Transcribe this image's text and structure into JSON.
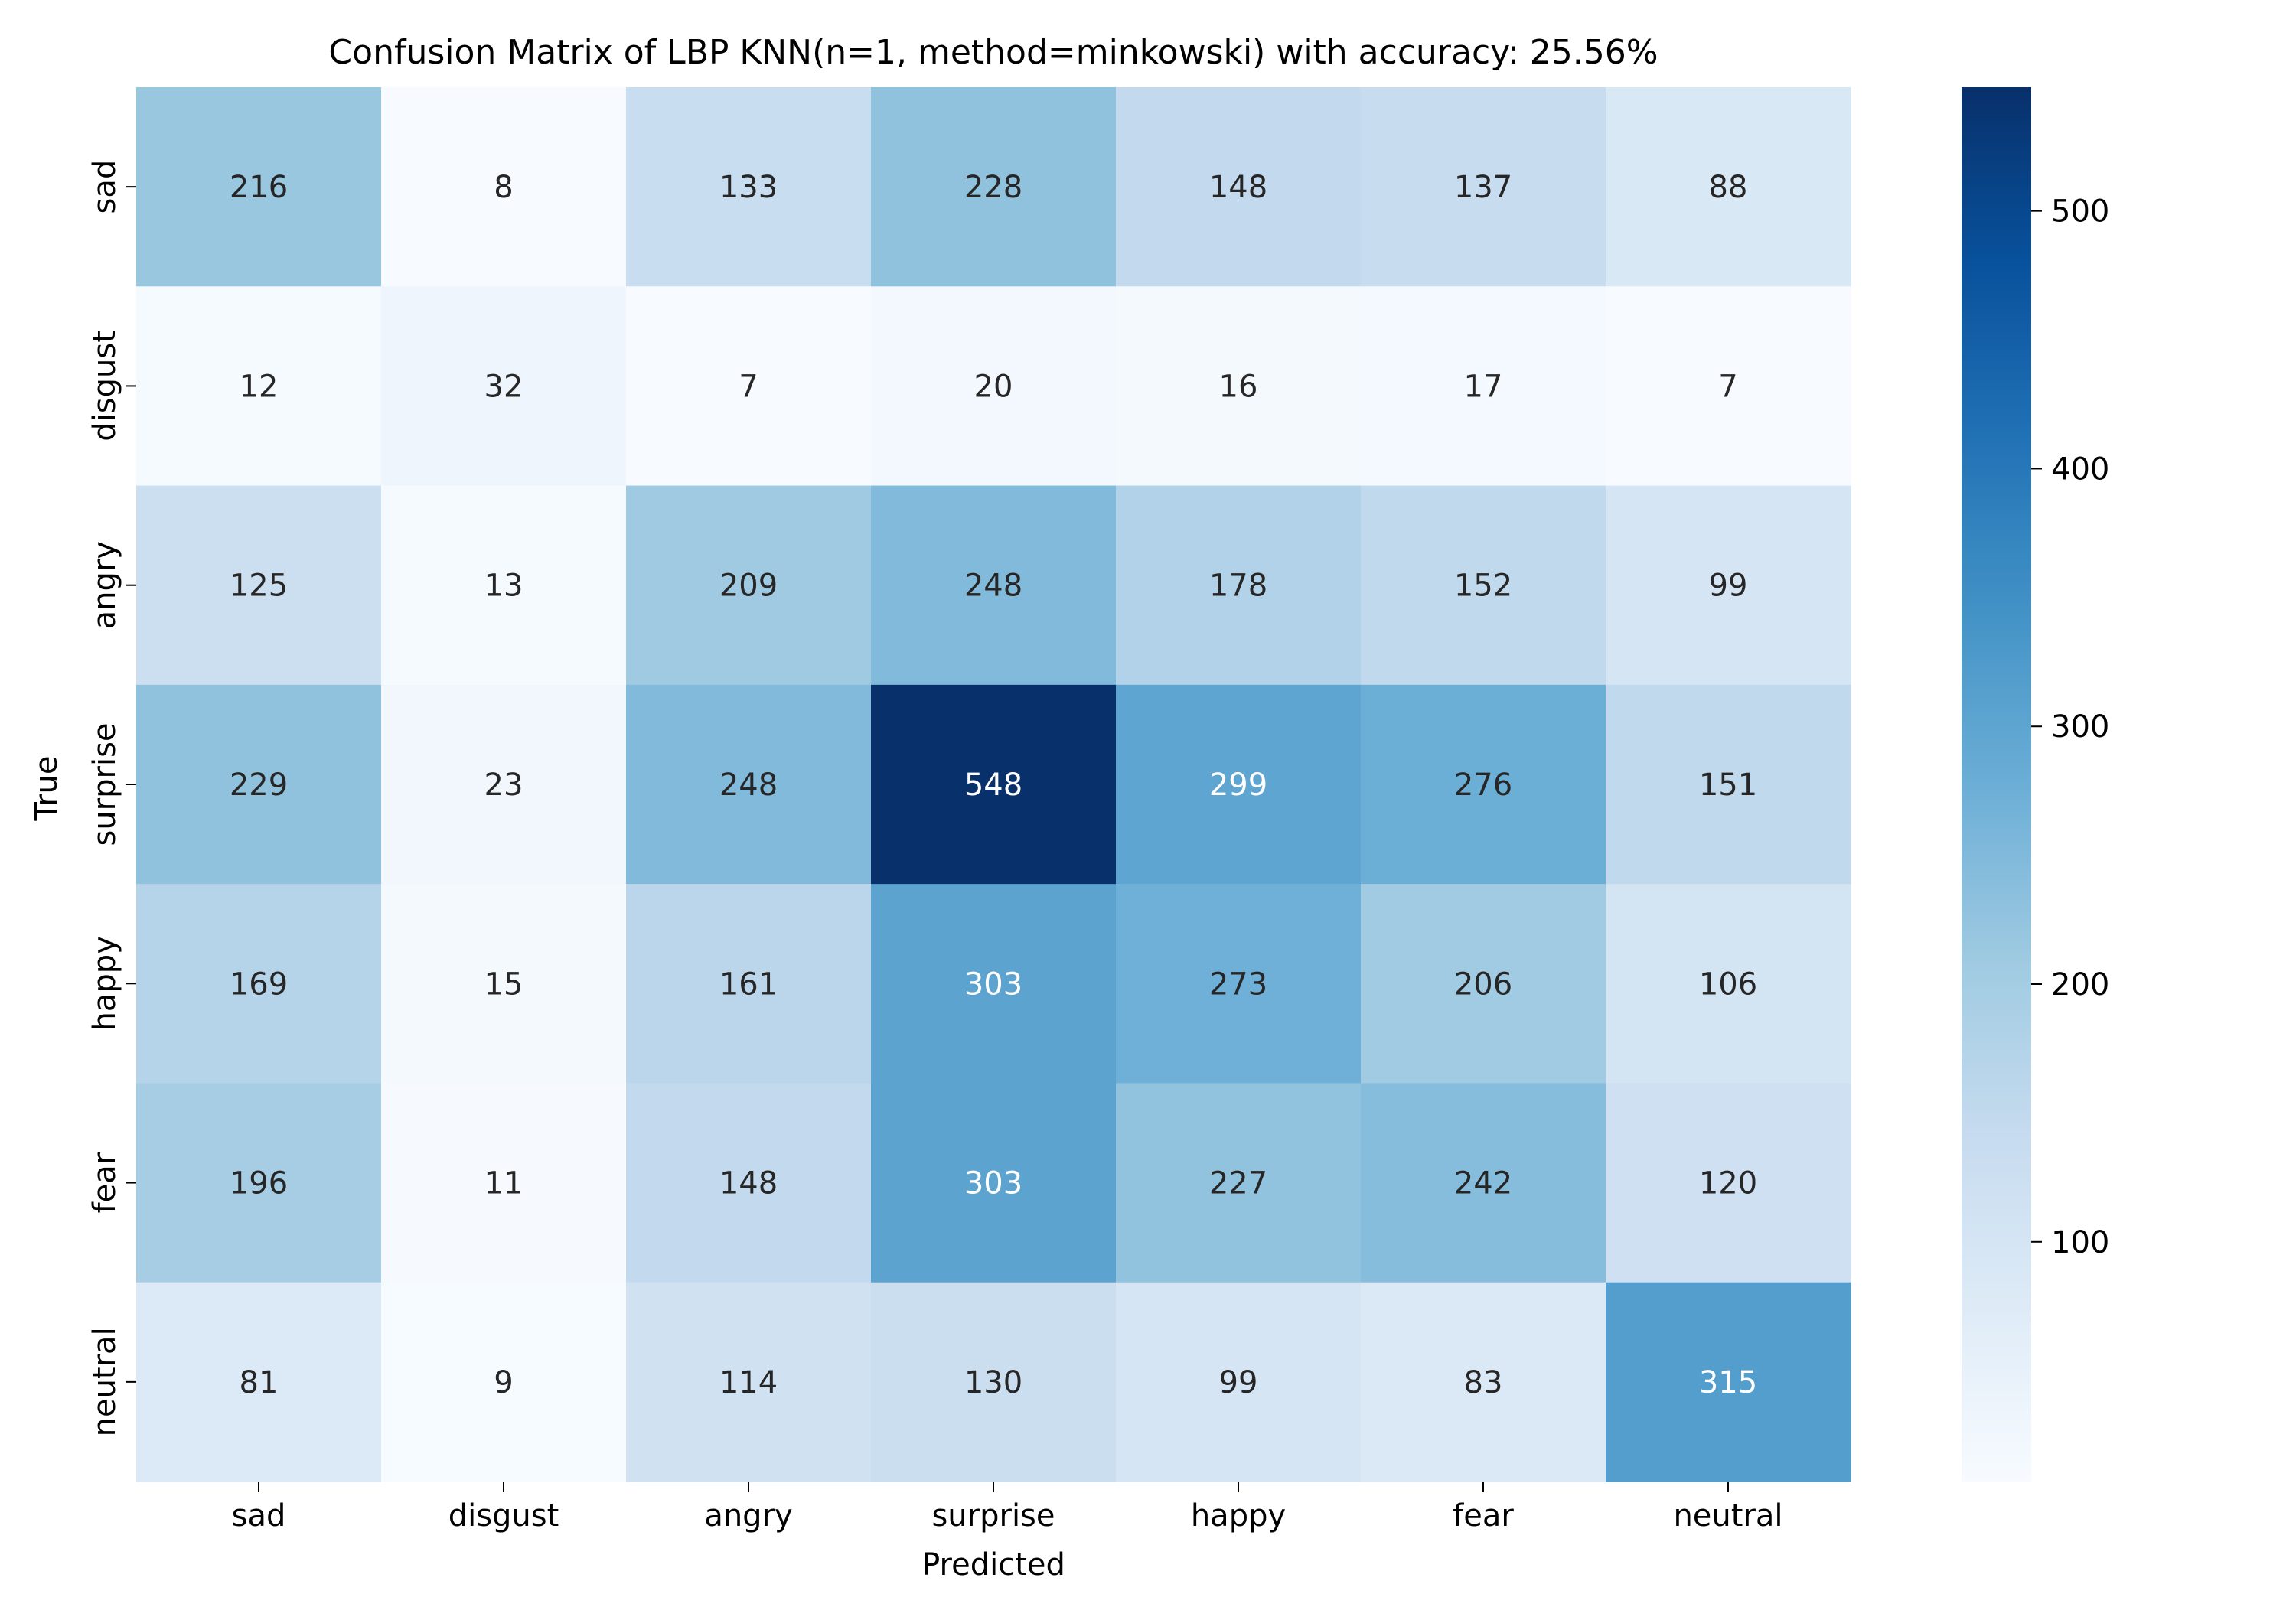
{
  "chart_data": {
    "type": "heatmap",
    "title": "Confusion Matrix of LBP KNN(n=1, method=minkowski) with accuracy: 25.56%",
    "xlabel": "Predicted",
    "ylabel": "True",
    "x_categories": [
      "sad",
      "disgust",
      "angry",
      "surprise",
      "happy",
      "fear",
      "neutral"
    ],
    "y_categories": [
      "sad",
      "disgust",
      "angry",
      "surprise",
      "happy",
      "fear",
      "neutral"
    ],
    "values": [
      [
        216,
        8,
        133,
        228,
        148,
        137,
        88
      ],
      [
        12,
        32,
        7,
        20,
        16,
        17,
        7
      ],
      [
        125,
        13,
        209,
        248,
        178,
        152,
        99
      ],
      [
        229,
        23,
        248,
        548,
        299,
        276,
        151
      ],
      [
        169,
        15,
        161,
        303,
        273,
        206,
        106
      ],
      [
        196,
        11,
        148,
        303,
        227,
        242,
        120
      ],
      [
        81,
        9,
        114,
        130,
        99,
        83,
        315
      ]
    ],
    "colorbar": {
      "colormap": "Blues",
      "vmin": 7,
      "vmax": 548,
      "ticks": [
        100,
        200,
        300,
        400,
        500
      ]
    },
    "grid": false
  }
}
